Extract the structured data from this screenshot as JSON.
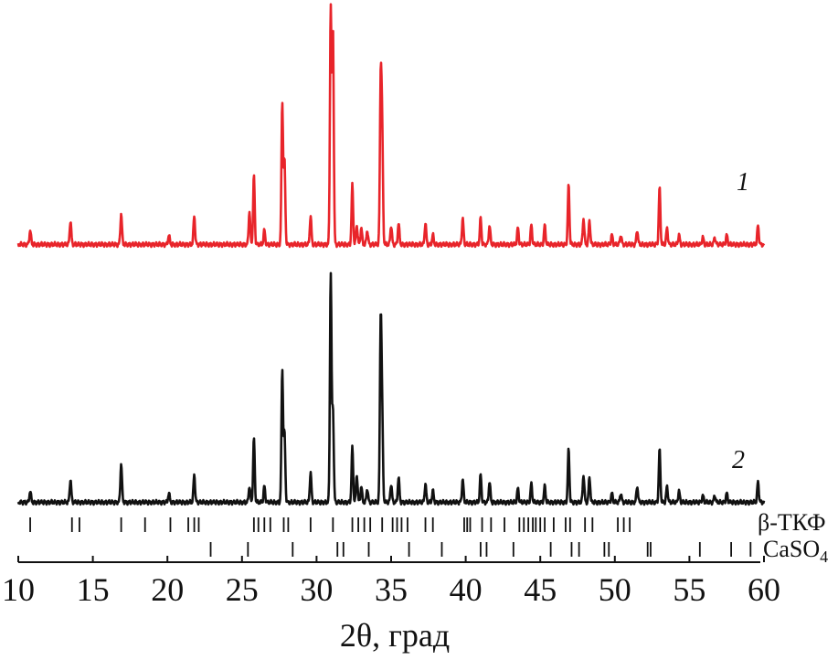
{
  "chart_data": {
    "type": "line",
    "xlabel": "2θ, град",
    "xlim": [
      10,
      60
    ],
    "x_ticks": [
      10,
      15,
      20,
      25,
      30,
      35,
      40,
      45,
      50,
      55,
      60
    ],
    "x_tick_labels": [
      "10",
      "15",
      "20",
      "25",
      "30",
      "35",
      "40",
      "45",
      "50",
      "55",
      "60"
    ],
    "series": [
      {
        "name": "1",
        "color": "#e8242a",
        "peaks": [
          [
            10.8,
            0.06
          ],
          [
            13.5,
            0.1
          ],
          [
            16.9,
            0.13
          ],
          [
            20.1,
            0.04
          ],
          [
            21.8,
            0.12
          ],
          [
            25.5,
            0.14
          ],
          [
            25.8,
            0.29
          ],
          [
            26.5,
            0.06
          ],
          [
            27.7,
            0.6
          ],
          [
            27.85,
            0.35
          ],
          [
            29.6,
            0.12
          ],
          [
            30.95,
            1.0
          ],
          [
            31.1,
            0.9
          ],
          [
            32.4,
            0.25
          ],
          [
            32.7,
            0.08
          ],
          [
            33.0,
            0.07
          ],
          [
            33.4,
            0.06
          ],
          [
            34.3,
            0.68
          ],
          [
            34.4,
            0.45
          ],
          [
            35.0,
            0.08
          ],
          [
            35.5,
            0.09
          ],
          [
            37.3,
            0.09
          ],
          [
            37.8,
            0.04
          ],
          [
            39.8,
            0.11
          ],
          [
            41.0,
            0.11
          ],
          [
            41.6,
            0.08
          ],
          [
            43.5,
            0.07
          ],
          [
            44.4,
            0.08
          ],
          [
            45.3,
            0.08
          ],
          [
            46.9,
            0.25
          ],
          [
            47.9,
            0.11
          ],
          [
            48.3,
            0.1
          ],
          [
            49.8,
            0.04
          ],
          [
            50.4,
            0.04
          ],
          [
            51.5,
            0.06
          ],
          [
            53.0,
            0.24
          ],
          [
            53.5,
            0.07
          ],
          [
            54.3,
            0.04
          ],
          [
            55.9,
            0.03
          ],
          [
            56.7,
            0.03
          ],
          [
            57.5,
            0.04
          ],
          [
            59.6,
            0.08
          ]
        ]
      },
      {
        "name": "2",
        "color": "#111111",
        "peaks": [
          [
            10.8,
            0.05
          ],
          [
            13.5,
            0.1
          ],
          [
            16.9,
            0.17
          ],
          [
            20.1,
            0.04
          ],
          [
            21.8,
            0.12
          ],
          [
            25.5,
            0.07
          ],
          [
            25.8,
            0.28
          ],
          [
            26.5,
            0.07
          ],
          [
            27.7,
            0.58
          ],
          [
            27.85,
            0.3
          ],
          [
            29.6,
            0.13
          ],
          [
            30.95,
            1.0
          ],
          [
            31.1,
            0.4
          ],
          [
            32.4,
            0.24
          ],
          [
            32.7,
            0.12
          ],
          [
            33.0,
            0.07
          ],
          [
            33.4,
            0.06
          ],
          [
            34.3,
            0.78
          ],
          [
            34.4,
            0.35
          ],
          [
            35.0,
            0.08
          ],
          [
            35.5,
            0.11
          ],
          [
            37.3,
            0.08
          ],
          [
            37.8,
            0.05
          ],
          [
            39.8,
            0.1
          ],
          [
            41.0,
            0.12
          ],
          [
            41.6,
            0.09
          ],
          [
            43.5,
            0.06
          ],
          [
            44.4,
            0.08
          ],
          [
            45.3,
            0.07
          ],
          [
            46.9,
            0.23
          ],
          [
            47.9,
            0.12
          ],
          [
            48.3,
            0.11
          ],
          [
            49.8,
            0.04
          ],
          [
            50.4,
            0.04
          ],
          [
            51.5,
            0.07
          ],
          [
            53.0,
            0.23
          ],
          [
            53.5,
            0.07
          ],
          [
            54.3,
            0.05
          ],
          [
            55.9,
            0.03
          ],
          [
            56.7,
            0.03
          ],
          [
            57.5,
            0.04
          ],
          [
            59.6,
            0.09
          ]
        ]
      }
    ],
    "reference_phases": [
      {
        "name": "β-ТКФ",
        "label_main": "β-ТКФ",
        "label_sub": "",
        "positions": [
          10.8,
          13.6,
          14.1,
          16.9,
          18.5,
          20.2,
          21.4,
          21.8,
          22.1,
          25.8,
          26.1,
          26.5,
          26.9,
          27.8,
          28.1,
          29.6,
          31.1,
          32.4,
          32.8,
          33.2,
          33.6,
          34.4,
          35.1,
          35.4,
          35.7,
          36.1,
          37.3,
          37.8,
          39.9,
          40.1,
          40.3,
          41.1,
          41.7,
          42.6,
          43.6,
          43.9,
          44.2,
          44.5,
          44.7,
          45.0,
          45.3,
          45.9,
          46.7,
          47.0,
          48.0,
          48.5,
          50.2,
          50.6,
          51.0
        ]
      },
      {
        "name": "CaSO4",
        "label_main": "CaSO",
        "label_sub": "4",
        "positions": [
          22.9,
          25.4,
          28.4,
          31.4,
          31.8,
          33.5,
          36.2,
          38.4,
          41.0,
          41.4,
          43.2,
          45.7,
          47.1,
          47.6,
          49.3,
          49.6,
          52.2,
          52.4,
          55.7,
          57.8,
          59.1
        ]
      }
    ],
    "annotations": [
      "1",
      "2"
    ]
  }
}
